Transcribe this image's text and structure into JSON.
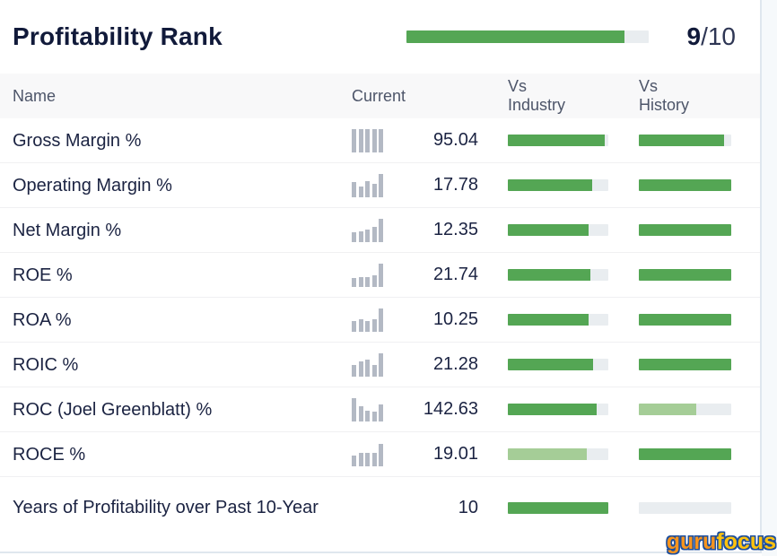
{
  "widget": {
    "title": "Profitability Rank"
  },
  "rank": {
    "score": "9",
    "denominator": "/10",
    "bar": {
      "pct": 90,
      "tone": "dark"
    }
  },
  "columns": {
    "name": "Name",
    "current": "Current",
    "vs_industry": "Vs Industry",
    "vs_history": "Vs History"
  },
  "colors": {
    "dark": "#54a654",
    "light": "#a5cd97"
  },
  "rows": [
    {
      "name": "Gross Margin %",
      "value": "95.04",
      "spark": [
        100,
        100,
        100,
        100,
        100
      ],
      "industry": {
        "pct": 96,
        "tone": "dark"
      },
      "history": {
        "pct": 92,
        "tone": "dark"
      }
    },
    {
      "name": "Operating Margin %",
      "value": "17.78",
      "spark": [
        62,
        45,
        68,
        55,
        100
      ],
      "industry": {
        "pct": 84,
        "tone": "dark"
      },
      "history": {
        "pct": 100,
        "tone": "dark"
      }
    },
    {
      "name": "Net Margin %",
      "value": "12.35",
      "spark": [
        40,
        46,
        52,
        62,
        100
      ],
      "industry": {
        "pct": 80,
        "tone": "dark"
      },
      "history": {
        "pct": 100,
        "tone": "dark"
      }
    },
    {
      "name": "ROE %",
      "value": "21.74",
      "spark": [
        35,
        42,
        42,
        48,
        100
      ],
      "industry": {
        "pct": 82,
        "tone": "dark"
      },
      "history": {
        "pct": 100,
        "tone": "dark"
      }
    },
    {
      "name": "ROA %",
      "value": "10.25",
      "spark": [
        45,
        52,
        45,
        52,
        100
      ],
      "industry": {
        "pct": 80,
        "tone": "dark"
      },
      "history": {
        "pct": 100,
        "tone": "dark"
      }
    },
    {
      "name": "ROIC %",
      "value": "21.28",
      "spark": [
        50,
        62,
        70,
        50,
        100
      ],
      "industry": {
        "pct": 85,
        "tone": "dark"
      },
      "history": {
        "pct": 100,
        "tone": "dark"
      }
    },
    {
      "name": "ROC (Joel Greenblatt) %",
      "value": "142.63",
      "spark": [
        100,
        65,
        45,
        40,
        70
      ],
      "industry": {
        "pct": 88,
        "tone": "dark"
      },
      "history": {
        "pct": 62,
        "tone": "light"
      }
    },
    {
      "name": "ROCE %",
      "value": "19.01",
      "spark": [
        45,
        55,
        55,
        55,
        95
      ],
      "industry": {
        "pct": 79,
        "tone": "light"
      },
      "history": {
        "pct": 100,
        "tone": "dark"
      }
    },
    {
      "name": "Years of Profitability over Past 10-Year",
      "value": "10",
      "spark": [],
      "industry": {
        "pct": 100,
        "tone": "dark"
      },
      "history": {
        "pct": 0,
        "tone": "dark"
      }
    }
  ],
  "logo": {
    "guru": "guru",
    "focus": "focus"
  }
}
